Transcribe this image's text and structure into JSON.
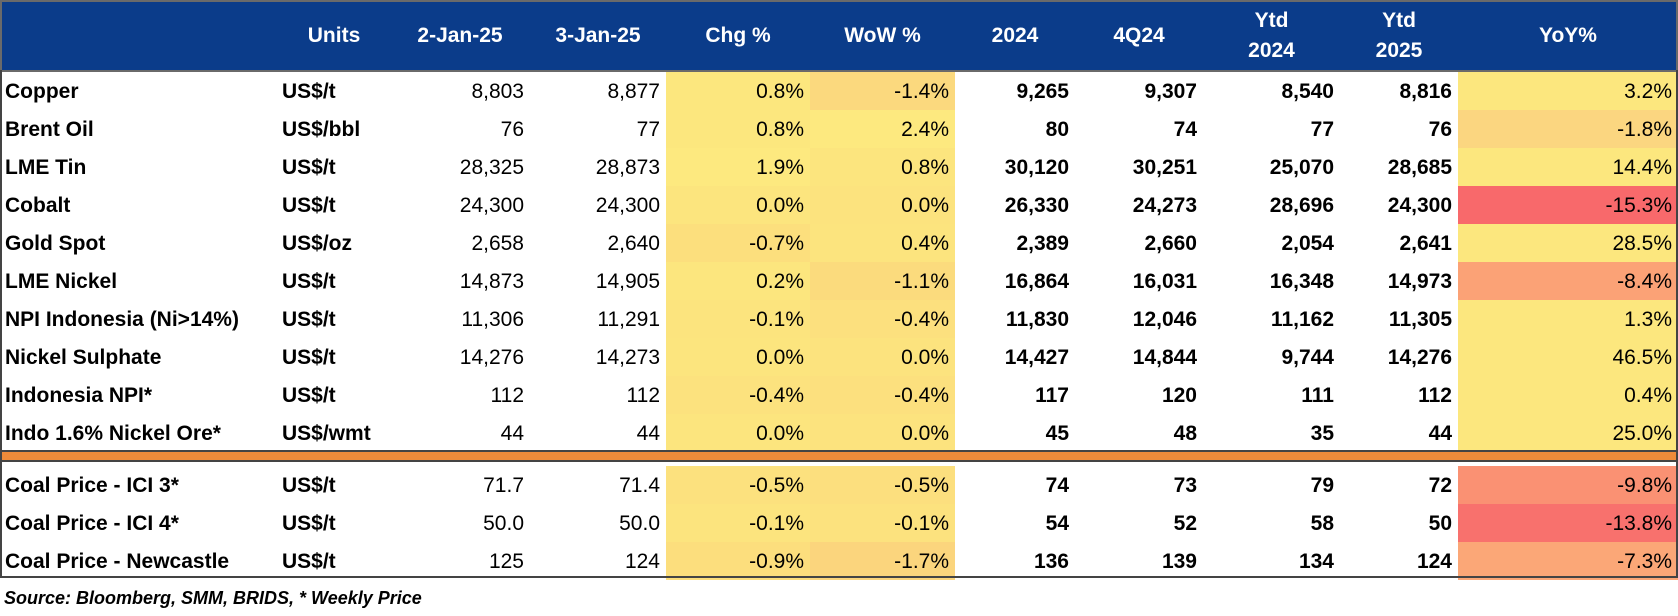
{
  "table": {
    "columns": [
      "",
      "Units",
      "2-Jan-25",
      "3-Jan-25",
      "Chg %",
      "WoW %",
      "2024",
      "4Q24",
      [
        "Ytd",
        "2024"
      ],
      [
        "Ytd",
        "2025"
      ],
      "YoY%"
    ],
    "rows": [
      {
        "name": "Copper",
        "unit": "US$/t",
        "jan2": "8,803",
        "jan3": "8,877",
        "chg": "0.8%",
        "wow": "-1.4%",
        "y2024": "9,265",
        "q424": "9,307",
        "ytd24": "8,540",
        "ytd25": "8,816",
        "yoy": "3.2%",
        "chg_bg": "#fce77e",
        "wow_bg": "#fbd97e",
        "yoy_bg": "#fce77e"
      },
      {
        "name": "Brent Oil",
        "unit": "US$/bbl",
        "jan2": "76",
        "jan3": "77",
        "chg": "0.8%",
        "wow": "2.4%",
        "y2024": "80",
        "q424": "74",
        "ytd24": "77",
        "ytd25": "76",
        "yoy": "-1.8%",
        "chg_bg": "#fce77e",
        "wow_bg": "#fde97f",
        "yoy_bg": "#fbd680"
      },
      {
        "name": "LME Tin",
        "unit": "US$/t",
        "jan2": "28,325",
        "jan3": "28,873",
        "chg": "1.9%",
        "wow": "0.8%",
        "y2024": "30,120",
        "q424": "30,251",
        "ytd24": "25,070",
        "ytd25": "28,685",
        "yoy": "14.4%",
        "chg_bg": "#fde97f",
        "wow_bg": "#fce57e",
        "yoy_bg": "#fce77e"
      },
      {
        "name": "Cobalt",
        "unit": "US$/t",
        "jan2": "24,300",
        "jan3": "24,300",
        "chg": "0.0%",
        "wow": "0.0%",
        "y2024": "26,330",
        "q424": "24,273",
        "ytd24": "28,696",
        "ytd25": "24,300",
        "yoy": "-15.3%",
        "chg_bg": "#fce57e",
        "wow_bg": "#fce37e",
        "yoy_bg": "#f8696b"
      },
      {
        "name": "Gold Spot",
        "unit": "US$/oz",
        "jan2": "2,658",
        "jan3": "2,640",
        "chg": "-0.7%",
        "wow": "0.4%",
        "y2024": "2,389",
        "q424": "2,660",
        "ytd24": "2,054",
        "ytd25": "2,641",
        "yoy": "28.5%",
        "chg_bg": "#fcdf7d",
        "wow_bg": "#fce47e",
        "yoy_bg": "#fce77e"
      },
      {
        "name": "LME Nickel",
        "unit": "US$/t",
        "jan2": "14,873",
        "jan3": "14,905",
        "chg": "0.2%",
        "wow": "-1.1%",
        "y2024": "16,864",
        "q424": "16,031",
        "ytd24": "16,348",
        "ytd25": "14,973",
        "yoy": "-8.4%",
        "chg_bg": "#fce67e",
        "wow_bg": "#fbdb7d",
        "yoy_bg": "#fba276"
      },
      {
        "name": "NPI Indonesia (Ni>14%)",
        "unit": "US$/t",
        "jan2": "11,306",
        "jan3": "11,291",
        "chg": "-0.1%",
        "wow": "-0.4%",
        "y2024": "11,830",
        "q424": "12,046",
        "ytd24": "11,162",
        "ytd25": "11,305",
        "yoy": "1.3%",
        "chg_bg": "#fce47e",
        "wow_bg": "#fce07e",
        "yoy_bg": "#fce77e"
      },
      {
        "name": "Nickel Sulphate",
        "unit": "US$/t",
        "jan2": "14,276",
        "jan3": "14,273",
        "chg": "0.0%",
        "wow": "0.0%",
        "y2024": "14,427",
        "q424": "14,844",
        "ytd24": "9,744",
        "ytd25": "14,276",
        "yoy": "46.5%",
        "chg_bg": "#fce57e",
        "wow_bg": "#fce37e",
        "yoy_bg": "#fce77e"
      },
      {
        "name": "Indonesia NPI*",
        "unit": "US$/t",
        "jan2": "112",
        "jan3": "112",
        "chg": "-0.4%",
        "wow": "-0.4%",
        "y2024": "117",
        "q424": "120",
        "ytd24": "111",
        "ytd25": "112",
        "yoy": "0.4%",
        "chg_bg": "#fce27e",
        "wow_bg": "#fce07e",
        "yoy_bg": "#fce77e"
      },
      {
        "name": "Indo 1.6% Nickel Ore*",
        "unit": "US$/wmt",
        "jan2": "44",
        "jan3": "44",
        "chg": "0.0%",
        "wow": "0.0%",
        "y2024": "45",
        "q424": "48",
        "ytd24": "35",
        "ytd25": "44",
        "yoy": "25.0%",
        "chg_bg": "#fce57e",
        "wow_bg": "#fce37e",
        "yoy_bg": "#fce77e"
      },
      {
        "name": "Coal Price - ICI 3*",
        "unit": "US$/t",
        "jan2": "71.7",
        "jan3": "71.4",
        "chg": "-0.5%",
        "wow": "-0.5%",
        "y2024": "74",
        "q424": "73",
        "ytd24": "79",
        "ytd25": "72",
        "yoy": "-9.8%",
        "chg_bg": "#fce17e",
        "wow_bg": "#fcdf7e",
        "yoy_bg": "#fa9173"
      },
      {
        "name": "Coal Price - ICI 4*",
        "unit": "US$/t",
        "jan2": "50.0",
        "jan3": "50.0",
        "chg": "-0.1%",
        "wow": "-0.1%",
        "y2024": "54",
        "q424": "52",
        "ytd24": "58",
        "ytd25": "50",
        "yoy": "-13.8%",
        "chg_bg": "#fce47e",
        "wow_bg": "#fce27e",
        "yoy_bg": "#f8716d"
      },
      {
        "name": "Coal Price - Newcastle",
        "unit": "US$/t",
        "jan2": "125",
        "jan3": "124",
        "chg": "-0.9%",
        "wow": "-1.7%",
        "y2024": "136",
        "q424": "139",
        "ytd24": "134",
        "ytd25": "124",
        "yoy": "-7.3%",
        "chg_bg": "#fcde7d",
        "wow_bg": "#fbd57d",
        "yoy_bg": "#fba777"
      }
    ]
  },
  "colors": {
    "header_bg": "#0b3c8a",
    "header_text": "#ffffff",
    "divider": "#ee8b3a"
  },
  "footer": {
    "source": "Source: Bloomberg, SMM, BRIDS, * Weekly Price"
  }
}
